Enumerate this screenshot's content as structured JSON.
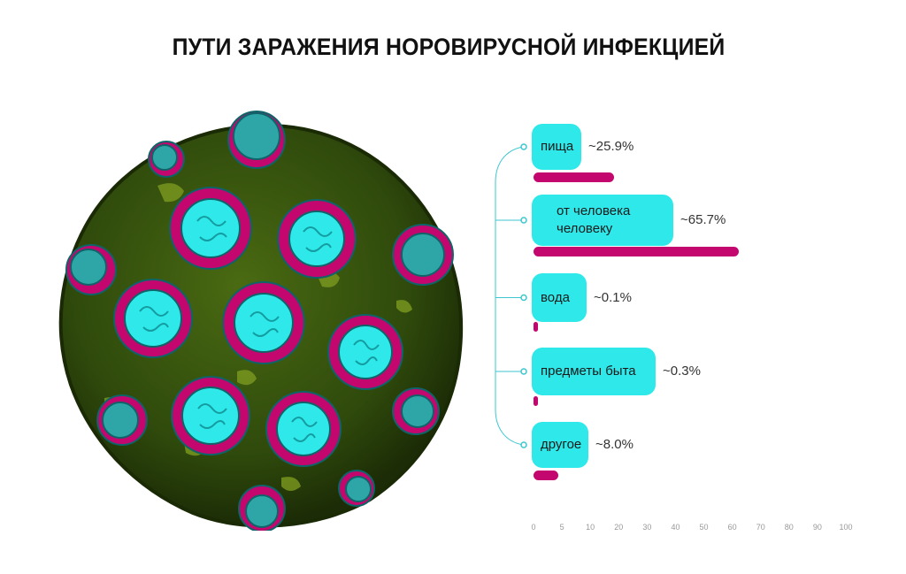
{
  "title": "ПУТИ ЗАРАЖЕНИЯ НОРОВИРУСНОЙ ИНФЕКЦИЕЙ",
  "chart_data": {
    "type": "bar",
    "orientation": "horizontal",
    "title": "ПУТИ ЗАРАЖЕНИЯ НОРОВИРУСНОЙ ИНФЕКЦИЕЙ",
    "categories": [
      "пища",
      "от человека человеку",
      "вода",
      "предметы быта",
      "другое"
    ],
    "category_lines": [
      [
        "пища"
      ],
      [
        "от человека",
        "человеку"
      ],
      [
        "вода"
      ],
      [
        "предметы быта"
      ],
      [
        "другое"
      ]
    ],
    "values": [
      25.9,
      65.7,
      0.1,
      0.3,
      8.0
    ],
    "value_labels": [
      "~25.9%",
      "~65.7%",
      "~0.1%",
      "~0.3%",
      "~8.0%"
    ],
    "xlim": [
      0,
      100
    ],
    "x_ticks": [
      "0",
      "5",
      "10",
      "20",
      "30",
      "40",
      "50",
      "60",
      "70",
      "80",
      "90",
      "100"
    ],
    "grid": false,
    "colors": {
      "bar": "#c4076e",
      "label_bg": "#2ee8ea",
      "connector": "#3cc6d0"
    }
  }
}
